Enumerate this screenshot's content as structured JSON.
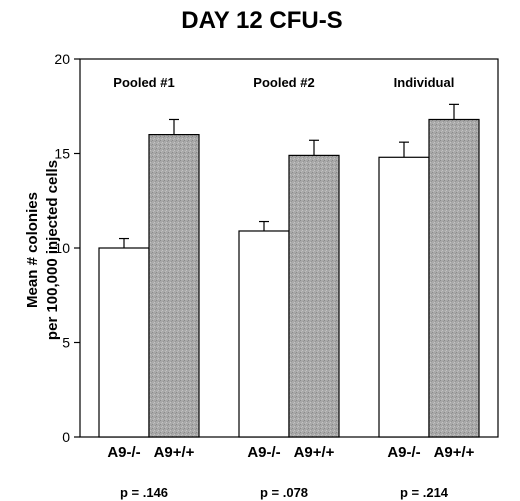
{
  "chart_data": {
    "type": "bar",
    "title": "DAY 12 CFU-S",
    "ylabel": [
      "Mean # colonies",
      "per 100,000  injected  cells"
    ],
    "xlabel": "",
    "ylim": [
      0,
      20
    ],
    "yticks": [
      0,
      5,
      10,
      15,
      20
    ],
    "grid": false,
    "groups": [
      {
        "label": "Pooled #1",
        "pvalue": "p = .146",
        "bars": [
          {
            "category": "A9-/-",
            "value": 10.0,
            "error": 0.5,
            "fill": "white"
          },
          {
            "category": "A9+/+",
            "value": 16.0,
            "error": 0.8,
            "fill": "gray"
          }
        ]
      },
      {
        "label": "Pooled #2",
        "pvalue": "p = .078",
        "bars": [
          {
            "category": "A9-/-",
            "value": 10.9,
            "error": 0.5,
            "fill": "white"
          },
          {
            "category": "A9+/+",
            "value": 14.9,
            "error": 0.8,
            "fill": "gray"
          }
        ]
      },
      {
        "label": "Individual",
        "pvalue": "p = .214",
        "bars": [
          {
            "category": "A9-/-",
            "value": 14.8,
            "error": 0.8,
            "fill": "white"
          },
          {
            "category": "A9+/+",
            "value": 16.8,
            "error": 0.8,
            "fill": "gray"
          }
        ]
      }
    ]
  },
  "colors": {
    "white_bar": "#ffffff",
    "gray_bar": "#a9a9a9",
    "stroke": "#000000"
  }
}
